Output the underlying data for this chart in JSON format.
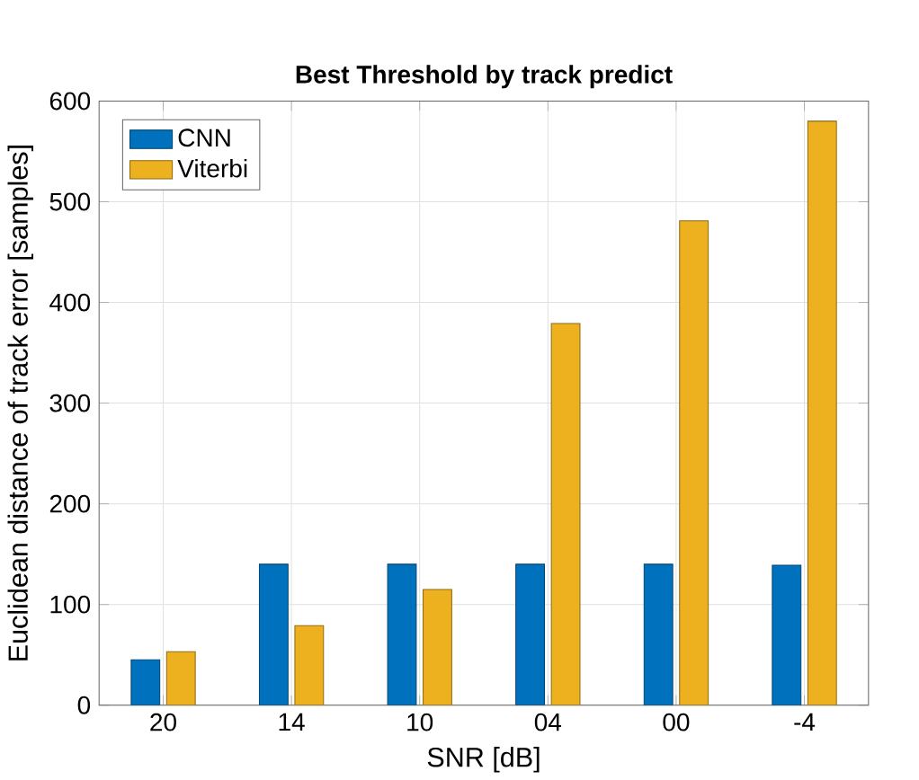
{
  "chart_data": {
    "type": "bar",
    "title": "Best Threshold by track predict",
    "xlabel": "SNR [dB]",
    "ylabel": "Euclidean distance of track error [samples]",
    "categories": [
      "20",
      "14",
      "10",
      "04",
      "00",
      "-4"
    ],
    "series": [
      {
        "name": "CNN",
        "color": "#0072bd",
        "values": [
          45,
          140,
          140,
          140,
          140,
          139
        ]
      },
      {
        "name": "Viterbi",
        "color": "#edb120",
        "values": [
          53,
          79,
          115,
          379,
          481,
          580
        ]
      }
    ],
    "ylim": [
      0,
      600
    ],
    "yticks": [
      0,
      100,
      200,
      300,
      400,
      500,
      600
    ],
    "grid": true,
    "legend": "top left"
  }
}
